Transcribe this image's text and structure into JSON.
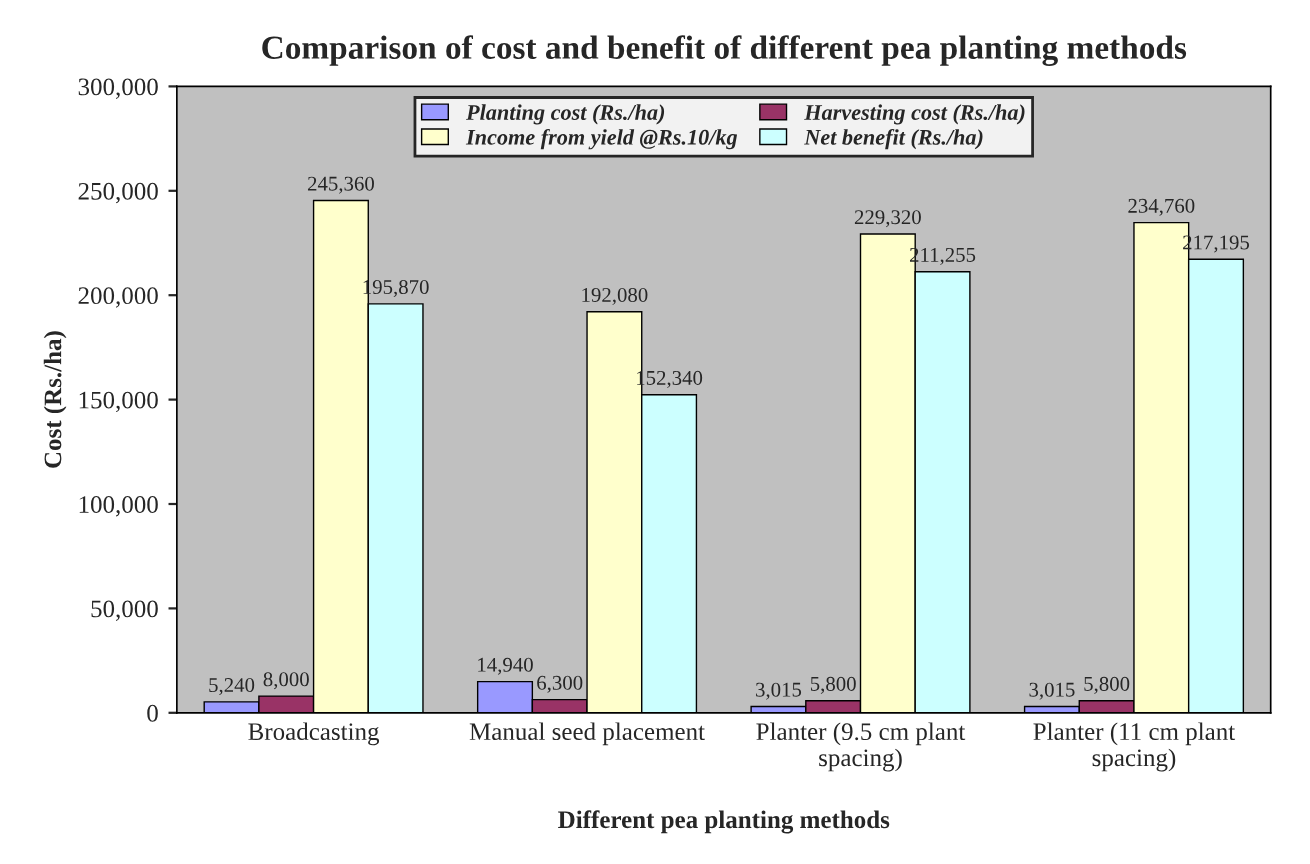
{
  "chart_data": {
    "type": "bar",
    "title": "Comparison of cost and benefit of different pea planting methods",
    "xlabel": "Different pea planting methods",
    "ylabel": "Cost (Rs./ha)",
    "categories": [
      "Broadcasting",
      "Manual seed placement",
      "Planter (9.5 cm plant\nspacing)",
      "Planter (11 cm plant\nspacing)"
    ],
    "series": [
      {
        "name": "Planting cost (Rs./ha)",
        "color": "#9999ff",
        "values": [
          5240,
          14940,
          3015,
          3015
        ],
        "value_labels": [
          "5,240",
          "14,940",
          "3,015",
          "3,015"
        ]
      },
      {
        "name": "Harvesting cost (Rs./ha)",
        "color": "#993366",
        "values": [
          8000,
          6300,
          5800,
          5800
        ],
        "value_labels": [
          "8,000",
          "6,300",
          "5,800",
          "5,800"
        ]
      },
      {
        "name": "Income from yield @Rs.10/kg",
        "color": "#ffffcc",
        "values": [
          245360,
          192080,
          229320,
          234760
        ],
        "value_labels": [
          "245,360",
          "192,080",
          "229,320",
          "234,760"
        ]
      },
      {
        "name": "Net benefit (Rs./ha)",
        "color": "#ccffff",
        "values": [
          195870,
          152340,
          211255,
          217195
        ],
        "value_labels": [
          "195,870",
          "152,340",
          "211,255",
          "217,195"
        ]
      }
    ],
    "ylim": [
      0,
      300000
    ],
    "yticks": [
      {
        "value": 0,
        "label": "0"
      },
      {
        "value": 50000,
        "label": "50,000"
      },
      {
        "value": 100000,
        "label": "100,000"
      },
      {
        "value": 150000,
        "label": "150,000"
      },
      {
        "value": 200000,
        "label": "200,000"
      },
      {
        "value": 250000,
        "label": "250,000"
      },
      {
        "value": 300000,
        "label": "300,000"
      }
    ],
    "grid": false,
    "legend": "top"
  }
}
